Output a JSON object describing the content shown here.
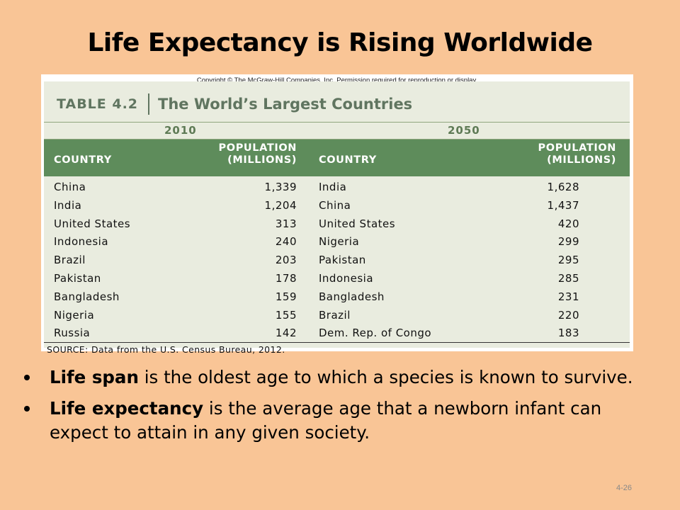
{
  "slide": {
    "title": "Life Expectancy is Rising Worldwide",
    "page_number": "4-26"
  },
  "figure": {
    "copyright": "Copyright © The McGraw-Hill Companies, Inc. Permission required for reproduction or display.",
    "table_number": "TABLE 4.2",
    "table_caption": "The World’s Largest Countries",
    "year_left": "2010",
    "year_right": "2050",
    "headers": {
      "country_left": "COUNTRY",
      "population_left_1": "POPULATION",
      "population_left_2": "(MILLIONS)",
      "country_right": "COUNTRY",
      "population_right_1": "POPULATION",
      "population_right_2": "(MILLIONS)"
    },
    "rows": [
      {
        "country_2010": "China",
        "pop_2010": "1,339",
        "country_2050": "India",
        "pop_2050": "1,628"
      },
      {
        "country_2010": "India",
        "pop_2010": "1,204",
        "country_2050": "China",
        "pop_2050": "1,437"
      },
      {
        "country_2010": "United States",
        "pop_2010": "313",
        "country_2050": "United States",
        "pop_2050": "420"
      },
      {
        "country_2010": "Indonesia",
        "pop_2010": "240",
        "country_2050": "Nigeria",
        "pop_2050": "299"
      },
      {
        "country_2010": "Brazil",
        "pop_2010": "203",
        "country_2050": "Pakistan",
        "pop_2050": "295"
      },
      {
        "country_2010": "Pakistan",
        "pop_2010": "178",
        "country_2050": "Indonesia",
        "pop_2050": "285"
      },
      {
        "country_2010": "Bangladesh",
        "pop_2010": "159",
        "country_2050": "Bangladesh",
        "pop_2050": "231"
      },
      {
        "country_2010": "Nigeria",
        "pop_2010": "155",
        "country_2050": "Brazil",
        "pop_2050": "220"
      },
      {
        "country_2010": "Russia",
        "pop_2010": "142",
        "country_2050": "Dem. Rep. of Congo",
        "pop_2050": "183"
      }
    ],
    "source": "SOURCE: Data from the U.S. Census Bureau, 2012."
  },
  "bullets": [
    {
      "term": "Life span",
      "text": " is the oldest age to which a species is known to survive."
    },
    {
      "term": "Life expectancy",
      "text": " is the average age that a newborn infant can expect to attain in any given society."
    }
  ]
}
